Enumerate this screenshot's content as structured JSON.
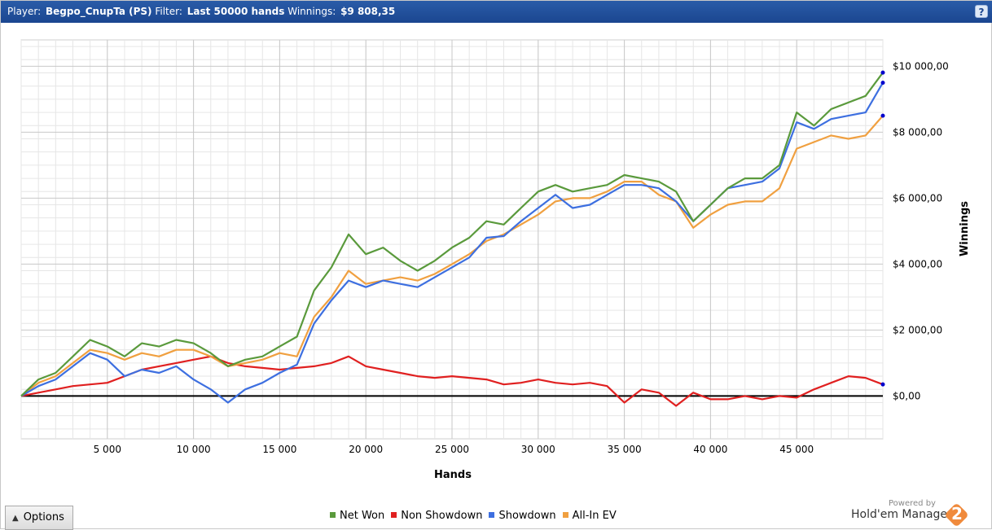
{
  "header": {
    "player_label": "Player:",
    "player_name": "Begpo_CnupTa (PS)",
    "filter_label": "Filter:",
    "filter_value": "Last 50000 hands",
    "winnings_label": "Winnings:",
    "winnings_value": "$9 808,35",
    "help_symbol": "?"
  },
  "options_button": {
    "label": "Options",
    "icon": "triangle-up-icon"
  },
  "branding": {
    "powered": "Powered by",
    "name": "Hold'em Manager",
    "logo_number": "2",
    "logo_color": "#f08a3c"
  },
  "chart_data": {
    "type": "line",
    "xlabel": "Hands",
    "ylabel": "Winnings",
    "xlim": [
      0,
      50000
    ],
    "ylim": [
      -1300,
      10800
    ],
    "xticks": [
      5000,
      10000,
      15000,
      20000,
      25000,
      30000,
      35000,
      40000,
      45000
    ],
    "xtick_labels": [
      "5 000",
      "10 000",
      "15 000",
      "20 000",
      "25 000",
      "30 000",
      "35 000",
      "40 000",
      "45 000"
    ],
    "yticks": [
      0,
      2000,
      4000,
      6000,
      8000,
      10000
    ],
    "ytick_labels": [
      "$0,00",
      "$2 000,00",
      "$4 000,00",
      "$6 000,00",
      "$8 000,00",
      "$10 000,00"
    ],
    "y_axis_side": "right",
    "grid": true,
    "legend_position": "bottom",
    "x": [
      0,
      1000,
      2000,
      3000,
      4000,
      5000,
      6000,
      7000,
      8000,
      9000,
      10000,
      11000,
      12000,
      13000,
      14000,
      15000,
      16000,
      17000,
      18000,
      19000,
      20000,
      21000,
      22000,
      23000,
      24000,
      25000,
      26000,
      27000,
      28000,
      29000,
      30000,
      31000,
      32000,
      33000,
      34000,
      35000,
      36000,
      37000,
      38000,
      39000,
      40000,
      41000,
      42000,
      43000,
      44000,
      45000,
      46000,
      47000,
      48000,
      49000,
      50000
    ],
    "series": [
      {
        "name": "Net Won",
        "color": "#5a9a3c",
        "values": [
          0,
          500,
          700,
          1200,
          1700,
          1500,
          1200,
          1600,
          1500,
          1700,
          1600,
          1300,
          900,
          1100,
          1200,
          1500,
          1800,
          3200,
          3900,
          4900,
          4300,
          4500,
          4100,
          3800,
          4100,
          4500,
          4800,
          5300,
          5200,
          5700,
          6200,
          6400,
          6200,
          6300,
          6400,
          6700,
          6600,
          6500,
          6200,
          5300,
          5800,
          6300,
          6600,
          6600,
          7000,
          8600,
          8200,
          8700,
          8900,
          9100,
          9808
        ]
      },
      {
        "name": "Non Showdown",
        "color": "#e02020",
        "values": [
          0,
          100,
          200,
          300,
          350,
          400,
          600,
          800,
          900,
          1000,
          1100,
          1200,
          1000,
          900,
          850,
          800,
          850,
          900,
          1000,
          1200,
          900,
          800,
          700,
          600,
          550,
          600,
          550,
          500,
          350,
          400,
          500,
          400,
          350,
          400,
          300,
          -200,
          200,
          100,
          -300,
          100,
          -100,
          -100,
          0,
          -100,
          0,
          -50,
          200,
          400,
          600,
          550,
          350
        ]
      },
      {
        "name": "Showdown",
        "color": "#3d6fe0",
        "values": [
          0,
          300,
          500,
          900,
          1300,
          1100,
          600,
          800,
          700,
          900,
          500,
          200,
          -200,
          200,
          400,
          700,
          950,
          2200,
          2900,
          3500,
          3300,
          3500,
          3400,
          3300,
          3600,
          3900,
          4200,
          4800,
          4850,
          5300,
          5700,
          6100,
          5700,
          5800,
          6100,
          6400,
          6400,
          6300,
          5900,
          5300,
          5800,
          6300,
          6400,
          6500,
          6900,
          8300,
          8100,
          8400,
          8500,
          8600,
          9500
        ]
      },
      {
        "name": "All-In EV",
        "color": "#f0a040",
        "values": [
          0,
          400,
          600,
          1000,
          1400,
          1300,
          1100,
          1300,
          1200,
          1400,
          1400,
          1200,
          900,
          1000,
          1100,
          1300,
          1200,
          2400,
          3000,
          3800,
          3400,
          3500,
          3600,
          3500,
          3700,
          4000,
          4300,
          4700,
          4900,
          5200,
          5500,
          5900,
          6000,
          6000,
          6200,
          6500,
          6500,
          6100,
          5900,
          5100,
          5500,
          5800,
          5900,
          5900,
          6300,
          7500,
          7700,
          7900,
          7800,
          7900,
          8500
        ]
      }
    ]
  }
}
